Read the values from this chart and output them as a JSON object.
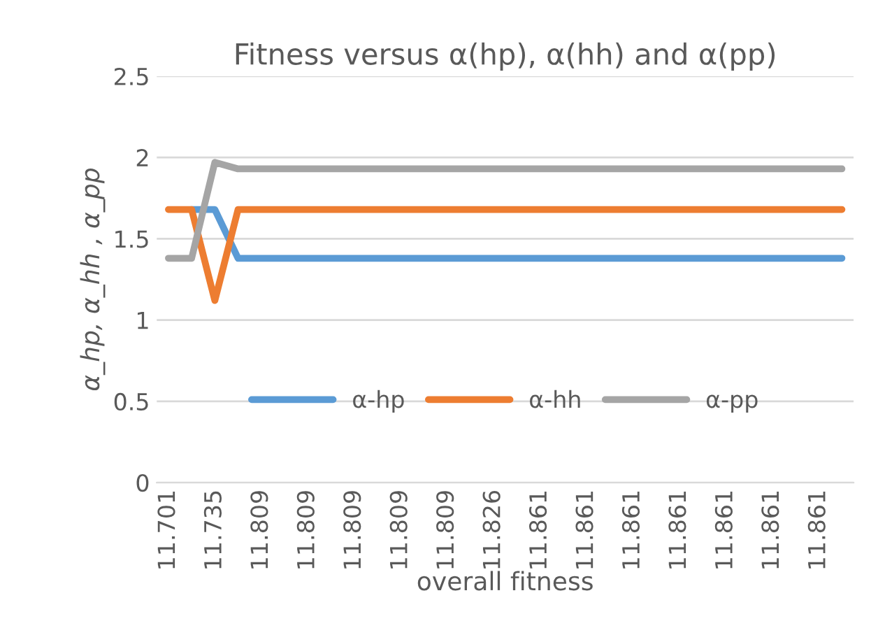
{
  "chart_data": {
    "type": "line",
    "title": "Fitness versus α(hp), α(hh) and α(pp)",
    "xlabel": "overall fitness",
    "ylabel": "α_hp, α_hh , α_pp",
    "categories": [
      "11.701",
      null,
      "11.735",
      null,
      "11.809",
      null,
      "11.809",
      null,
      "11.809",
      null,
      "11.809",
      null,
      "11.809",
      null,
      "11.826",
      null,
      "11.861",
      null,
      "11.861",
      null,
      "11.861",
      null,
      "11.861",
      null,
      "11.861",
      null,
      "11.861",
      null,
      "11.861",
      null
    ],
    "series": [
      {
        "name": "α-hp",
        "color": "#5b9bd5",
        "values": [
          null,
          1.68,
          1.68,
          1.38,
          1.38,
          1.38,
          1.38,
          1.38,
          1.38,
          1.38,
          1.38,
          1.38,
          1.38,
          1.38,
          1.38,
          1.38,
          1.38,
          1.38,
          1.38,
          1.38,
          1.38,
          1.38,
          1.38,
          1.38,
          1.38,
          1.38,
          1.38,
          1.38,
          1.38,
          1.38
        ]
      },
      {
        "name": "α-hh",
        "color": "#ed7d31",
        "values": [
          1.68,
          1.68,
          1.12,
          1.68,
          1.68,
          1.68,
          1.68,
          1.68,
          1.68,
          1.68,
          1.68,
          1.68,
          1.68,
          1.68,
          1.68,
          1.68,
          1.68,
          1.68,
          1.68,
          1.68,
          1.68,
          1.68,
          1.68,
          1.68,
          1.68,
          1.68,
          1.68,
          1.68,
          1.68,
          1.68
        ]
      },
      {
        "name": "α-pp",
        "color": "#a5a5a5",
        "values": [
          1.38,
          1.38,
          1.97,
          1.93,
          1.93,
          1.93,
          1.93,
          1.93,
          1.93,
          1.93,
          1.93,
          1.93,
          1.93,
          1.93,
          1.93,
          1.93,
          1.93,
          1.93,
          1.93,
          1.93,
          1.93,
          1.93,
          1.93,
          1.93,
          1.93,
          1.93,
          1.93,
          1.93,
          1.93,
          1.93
        ]
      }
    ],
    "ylim": [
      0,
      2.5
    ],
    "yticks": [
      0,
      0.5,
      1,
      1.5,
      2,
      2.5
    ],
    "grid": "y",
    "legend": "center",
    "marker": "none",
    "line_style": "solid"
  }
}
